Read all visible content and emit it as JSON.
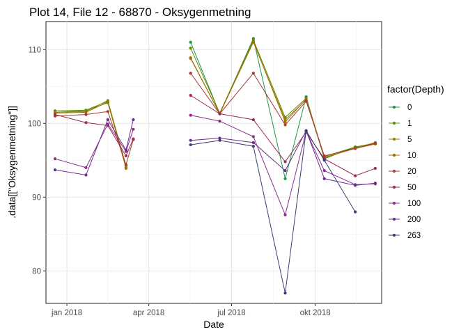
{
  "chart_data": {
    "type": "line",
    "title": "Plot 14, File 12 - 68870  -  Oksygenmetning",
    "xlabel": "Date",
    "ylabel": ".data[[\"Oksygenmetning\"]]",
    "x_ticks": [
      "2018-01-01",
      "2018-04-01",
      "2018-07-01",
      "2018-10-01"
    ],
    "x_tick_labels": [
      "jan 2018",
      "apr 2018",
      "jul 2018",
      "okt 2018"
    ],
    "xlim": [
      "2017-12-09",
      "2018-12-13"
    ],
    "y_ticks": [
      80,
      90,
      100,
      110
    ],
    "ylim": [
      75.6,
      113.8
    ],
    "grid": true,
    "legend": {
      "title": "factor(Depth)",
      "position": "right"
    },
    "series": [
      {
        "name": "0",
        "color": "#1a9641",
        "points": [
          [
            "2017-12-19",
            101.5
          ],
          [
            "2018-01-22",
            101.7
          ],
          [
            "2018-02-15",
            102.8
          ],
          [
            "2018-03-07",
            94.2
          ],
          null,
          [
            "2018-05-17",
            111.0
          ],
          [
            "2018-06-18",
            101.3
          ],
          [
            "2018-07-25",
            111.5
          ],
          [
            "2018-08-29",
            92.5
          ],
          [
            "2018-09-21",
            103.6
          ],
          [
            "2018-10-11",
            95.2
          ],
          [
            "2018-11-14",
            96.8
          ],
          [
            "2018-12-06",
            97.3
          ]
        ]
      },
      {
        "name": "1",
        "color": "#5e8c00",
        "points": [
          [
            "2017-12-19",
            101.7
          ],
          [
            "2018-01-22",
            101.8
          ],
          [
            "2018-02-15",
            103.0
          ],
          [
            "2018-03-07",
            94.0
          ],
          null,
          [
            "2018-05-17",
            110.2
          ],
          [
            "2018-06-18",
            101.4
          ],
          [
            "2018-07-25",
            111.3
          ],
          [
            "2018-08-29",
            100.8
          ],
          [
            "2018-09-21",
            103.4
          ],
          [
            "2018-10-11",
            95.5
          ],
          [
            "2018-11-14",
            96.8
          ],
          [
            "2018-12-06",
            97.3
          ]
        ]
      },
      {
        "name": "5",
        "color": "#8c8500",
        "points": [
          [
            "2017-12-19",
            101.5
          ],
          [
            "2018-01-22",
            101.6
          ],
          [
            "2018-02-15",
            103.1
          ],
          [
            "2018-03-07",
            94.3
          ],
          null,
          [
            "2018-05-17",
            108.9
          ],
          [
            "2018-06-18",
            101.3
          ],
          [
            "2018-07-25",
            111.0
          ],
          [
            "2018-08-29",
            100.5
          ],
          [
            "2018-09-21",
            103.2
          ],
          [
            "2018-10-11",
            95.3
          ],
          [
            "2018-11-14",
            96.7
          ],
          [
            "2018-12-06",
            97.4
          ]
        ]
      },
      {
        "name": "10",
        "color": "#a86a00",
        "points": [
          [
            "2017-12-19",
            101.4
          ],
          [
            "2018-01-22",
            101.5
          ],
          [
            "2018-02-15",
            102.9
          ],
          [
            "2018-03-07",
            93.9
          ],
          null,
          [
            "2018-05-17",
            108.8
          ],
          [
            "2018-06-18",
            101.3
          ],
          [
            "2018-07-25",
            111.1
          ],
          [
            "2018-08-29",
            100.2
          ],
          [
            "2018-09-21",
            103.3
          ],
          [
            "2018-10-11",
            95.4
          ],
          [
            "2018-11-14",
            96.6
          ],
          [
            "2018-12-06",
            97.2
          ]
        ]
      },
      {
        "name": "20",
        "color": "#a33a35",
        "points": [
          [
            "2017-12-19",
            101.0
          ],
          [
            "2018-01-22",
            101.2
          ],
          [
            "2018-02-15",
            101.6
          ],
          [
            "2018-03-07",
            94.4
          ],
          [
            "2018-03-15",
            97.8
          ],
          null,
          [
            "2018-05-17",
            106.8
          ],
          [
            "2018-06-18",
            101.3
          ],
          [
            "2018-07-25",
            106.8
          ],
          [
            "2018-08-29",
            99.8
          ],
          [
            "2018-09-21",
            103.0
          ],
          [
            "2018-10-11",
            95.6
          ],
          [
            "2018-11-14",
            96.6
          ],
          [
            "2018-12-06",
            97.3
          ]
        ]
      },
      {
        "name": "50",
        "color": "#9e2a55",
        "points": [
          [
            "2017-12-19",
            101.2
          ],
          [
            "2018-01-22",
            100.1
          ],
          [
            "2018-02-15",
            99.7
          ],
          [
            "2018-03-07",
            95.6
          ],
          [
            "2018-03-15",
            97.9
          ],
          null,
          [
            "2018-05-17",
            103.8
          ],
          [
            "2018-06-18",
            101.3
          ],
          [
            "2018-07-25",
            100.5
          ],
          [
            "2018-08-29",
            94.8
          ],
          [
            "2018-09-21",
            98.8
          ],
          [
            "2018-10-11",
            95.2
          ],
          [
            "2018-11-14",
            92.9
          ],
          [
            "2018-12-06",
            93.9
          ]
        ]
      },
      {
        "name": "100",
        "color": "#8c2d8c",
        "points": [
          [
            "2017-12-19",
            95.2
          ],
          [
            "2018-01-22",
            94.0
          ],
          [
            "2018-02-15",
            99.9
          ],
          [
            "2018-03-07",
            96.2
          ],
          [
            "2018-03-15",
            99.2
          ],
          null,
          [
            "2018-05-17",
            101.1
          ],
          [
            "2018-06-18",
            100.3
          ],
          [
            "2018-07-25",
            98.2
          ],
          [
            "2018-08-29",
            87.6
          ],
          [
            "2018-09-21",
            98.9
          ],
          [
            "2018-10-11",
            93.6
          ],
          [
            "2018-11-14",
            91.7
          ],
          [
            "2018-12-06",
            91.8
          ]
        ]
      },
      {
        "name": "200",
        "color": "#6a2d8c",
        "points": [
          [
            "2017-12-19",
            93.7
          ],
          [
            "2018-01-22",
            93.0
          ],
          [
            "2018-02-15",
            100.5
          ],
          [
            "2018-03-07",
            96.4
          ],
          [
            "2018-03-15",
            100.5
          ],
          null,
          [
            "2018-05-17",
            97.7
          ],
          [
            "2018-06-18",
            98.0
          ],
          [
            "2018-07-25",
            97.4
          ],
          [
            "2018-08-29",
            93.6
          ],
          [
            "2018-09-21",
            99.0
          ],
          [
            "2018-10-11",
            92.5
          ],
          [
            "2018-11-14",
            91.6
          ],
          [
            "2018-12-06",
            91.9
          ]
        ]
      },
      {
        "name": "263",
        "color": "#3b3b73",
        "points": [
          null,
          [
            "2018-05-17",
            97.1
          ],
          [
            "2018-06-18",
            97.7
          ],
          [
            "2018-07-25",
            96.9
          ],
          [
            "2018-08-29",
            77.0
          ],
          [
            "2018-09-21",
            99.0
          ],
          [
            "2018-10-11",
            95.0
          ],
          [
            "2018-11-14",
            88.0
          ]
        ]
      }
    ]
  }
}
